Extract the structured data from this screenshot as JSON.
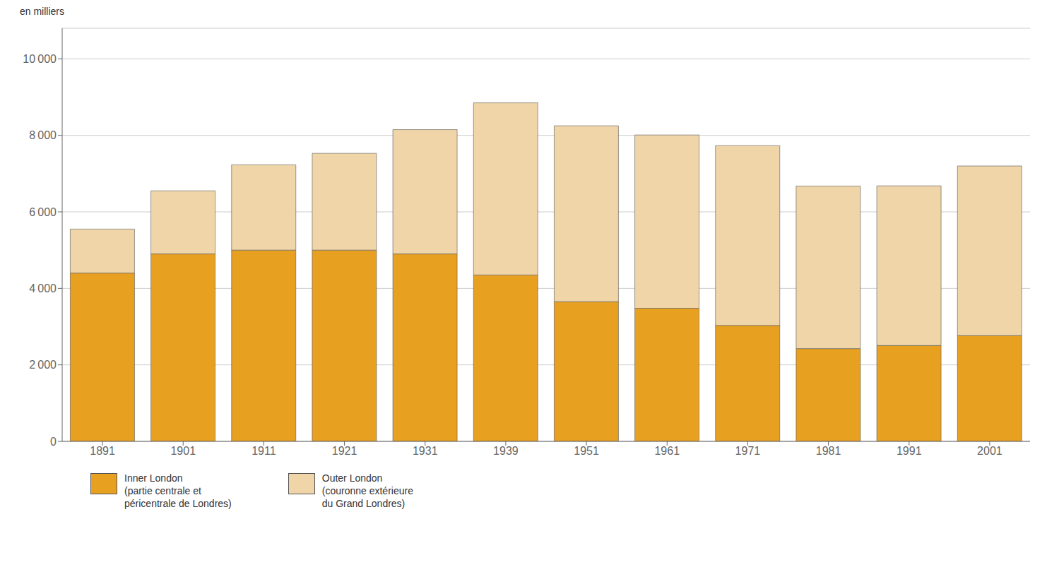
{
  "chart_data": {
    "type": "bar",
    "stacked": true,
    "ylabel": "en milliers",
    "categories": [
      "1891",
      "1901",
      "1911",
      "1921",
      "1931",
      "1939",
      "1951",
      "1961",
      "1971",
      "1981",
      "1991",
      "2001"
    ],
    "series": [
      {
        "name": "Inner London\n(partie centrale et\npéricentrale de Londres)",
        "color": "#E8A020",
        "values": [
          4400,
          4900,
          5000,
          5000,
          4900,
          4350,
          3650,
          3480,
          3030,
          2425,
          2505,
          2765
        ]
      },
      {
        "name": "Outer London\n(couronne extérieure\ndu Grand Londres)",
        "color": "#F0D5A8",
        "values": [
          1150,
          1650,
          2230,
          2530,
          3250,
          4500,
          4600,
          4530,
          4700,
          4250,
          4175,
          4435
        ]
      }
    ],
    "ylim": [
      0,
      10800
    ],
    "yticks": [
      0,
      {
        "value": 2000,
        "label": "2 000"
      },
      {
        "value": 4000,
        "label": "4 000"
      },
      {
        "value": 6000,
        "label": "6 000"
      },
      {
        "value": 8000,
        "label": "8 000"
      },
      {
        "value": 10000,
        "label": "10 000"
      }
    ],
    "grid": true,
    "legend": "bottom"
  }
}
